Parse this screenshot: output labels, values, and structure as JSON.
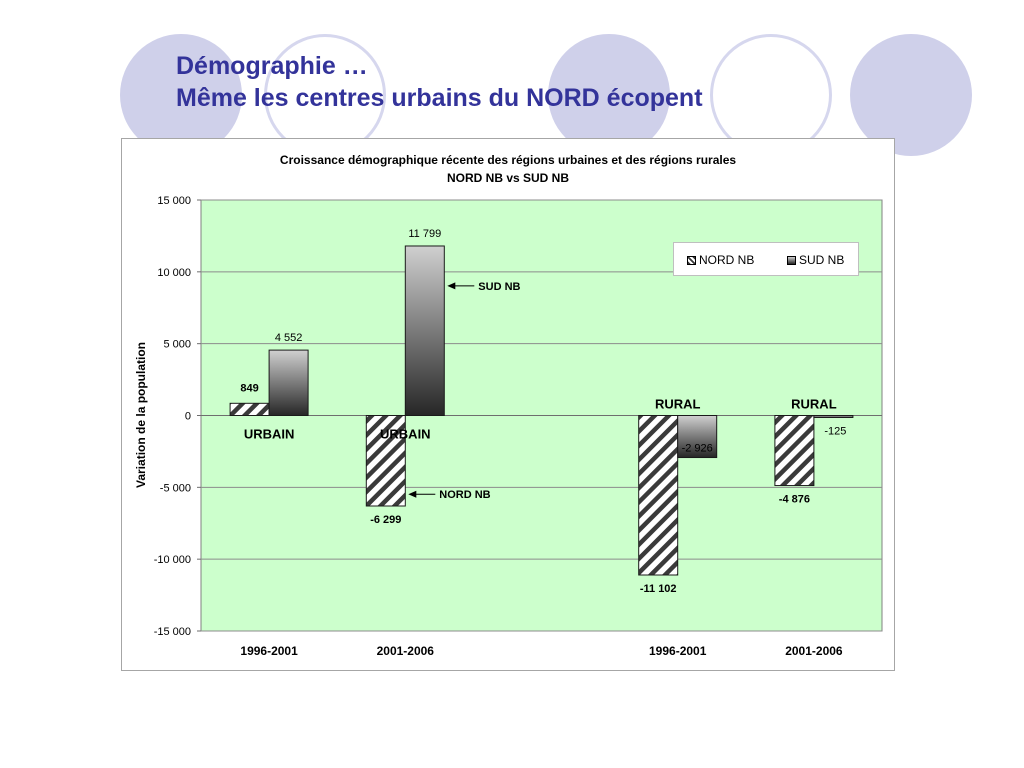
{
  "slide": {
    "title_line1": "Démographie …",
    "title_line2": "Même les centres urbains du NORD écopent"
  },
  "colors": {
    "title": "#33339a",
    "deco_circle": "#cfd0ea",
    "plot_background": "#ccffcc",
    "nord_pattern": "hatched-dark-gray",
    "sud_gradient": [
      "#d0d0d0",
      "#262626"
    ]
  },
  "chart_data": {
    "type": "bar",
    "title": "Croissance démographique récente des régions urbaines et des régions rurales",
    "subtitle": "NORD NB vs SUD NB",
    "ylabel": "Variation de la population",
    "xlabel": "",
    "ylim": [
      -15000,
      15000
    ],
    "yticks": [
      15000,
      10000,
      5000,
      0,
      -5000,
      -10000,
      -15000
    ],
    "ytick_labels": [
      "15 000",
      "10 000",
      "5 000",
      "0",
      "-5 000",
      "-10 000",
      "-15 000"
    ],
    "grid": true,
    "legend_position": "top-right",
    "categories": [
      "1996-2001",
      "2001-2006",
      "",
      "1996-2001",
      "2001-2006"
    ],
    "group_labels": [
      "URBAIN",
      "URBAIN",
      "",
      "RURAL",
      "RURAL"
    ],
    "series": [
      {
        "name": "NORD NB",
        "values": [
          849,
          -6299,
          null,
          -11102,
          -4876
        ],
        "labels": [
          "849",
          "-6 299",
          "",
          "-11 102",
          "-4 876"
        ]
      },
      {
        "name": "SUD NB",
        "values": [
          4552,
          11799,
          null,
          -2926,
          -125
        ],
        "labels": [
          "4 552",
          "11 799",
          "",
          "-2 926",
          "-125"
        ]
      }
    ],
    "annotations": [
      {
        "text": "SUD NB",
        "series": "SUD NB",
        "category_index": 1
      },
      {
        "text": "NORD NB",
        "series": "NORD NB",
        "category_index": 1
      }
    ]
  }
}
